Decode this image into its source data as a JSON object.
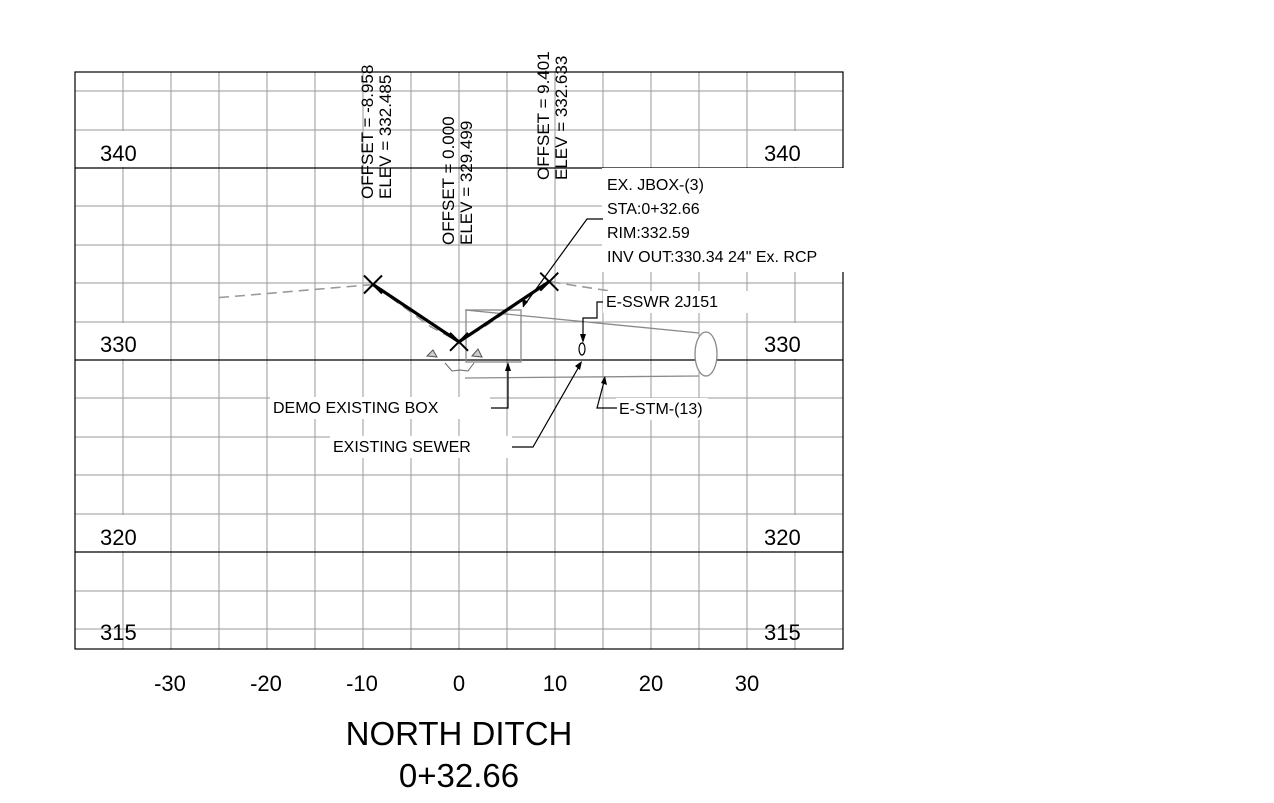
{
  "section": {
    "title": "NORTH DITCH",
    "station": "0+32.66"
  },
  "axes": {
    "x_ticks": [
      "-30",
      "-20",
      "-10",
      "0",
      "10",
      "20",
      "30"
    ],
    "x_range": [
      -40,
      40
    ],
    "y_range": [
      313.5,
      344
    ],
    "elev_labels_left": [
      "340",
      "330",
      "320",
      "315"
    ],
    "elev_labels_right": [
      "340",
      "330",
      "320",
      "315"
    ]
  },
  "offset_labels": [
    {
      "offset": "OFFSET = -8.958",
      "elev": "ELEV = 332.485",
      "x": -8.958,
      "y": 332.485
    },
    {
      "offset": "OFFSET = 0.000",
      "elev": "ELEV = 329.499",
      "x": 0.0,
      "y": 329.499
    },
    {
      "offset": "OFFSET = 9.401",
      "elev": "ELEV = 332.633",
      "x": 9.401,
      "y": 332.633
    }
  ],
  "callouts": {
    "jbox": [
      "EX. JBOX-(3)",
      "STA:0+32.66",
      "RIM:332.59",
      "INV OUT:330.34 24\" Ex. RCP"
    ],
    "sewer_tag": "E-SSWR 2J151",
    "storm_tag": "E-STM-(13)",
    "demo_box": "DEMO EXISTING BOX",
    "existing_sewer": "EXISTING SEWER"
  },
  "chart_data": {
    "type": "line",
    "xlim": [
      -40,
      40
    ],
    "ylim": [
      313.5,
      344
    ],
    "series": [
      {
        "points": [
          [
            -25,
            331.8
          ],
          [
            -8.958,
            332.485
          ],
          [
            -3,
            330.3
          ],
          [
            0,
            329.499
          ],
          [
            3,
            330.4
          ],
          [
            9.401,
            332.633
          ],
          [
            28,
            331.2
          ]
        ]
      },
      {
        "points": [
          [
            -8.958,
            332.485
          ],
          [
            0,
            329.499
          ],
          [
            9.401,
            332.633
          ]
        ]
      }
    ]
  },
  "colors": {
    "major_grid": "#000000",
    "minor_grid": "#9a9a9a",
    "existing_ground": "#9a9a9a",
    "proposed_grade": "#000000"
  }
}
